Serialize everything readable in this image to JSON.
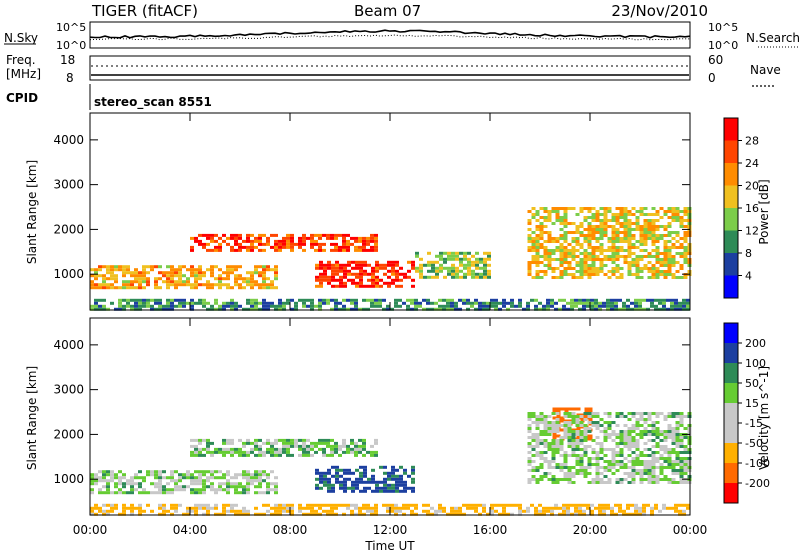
{
  "header": {
    "station": "TIGER (fitACF)",
    "beam": "Beam 07",
    "date": "23/Nov/2010"
  },
  "nsky_panel": {
    "left_label": "N.Sky",
    "left_ticks": [
      "10^5",
      "10^0"
    ],
    "right_label": "N.Search",
    "right_ticks": [
      "10^5",
      "10^0"
    ]
  },
  "freq_panel": {
    "left_label_1": "Freq.",
    "left_label_2": "[MHz]",
    "left_ticks": [
      "18",
      "8"
    ],
    "right_label": "Nave",
    "right_ticks": [
      "60",
      "0"
    ]
  },
  "cpid_panel": {
    "label": "CPID",
    "value": "stereo_scan 8551"
  },
  "colors": {
    "power_scale": [
      "#0000ff",
      "#1c3fa0",
      "#2e8b57",
      "#7ccd4a",
      "#f0c020",
      "#ff8c00",
      "#ff4500",
      "#ff0000"
    ],
    "velocity_scale": [
      "#ff0000",
      "#ff6a00",
      "#ffb000",
      "#c8c8c8",
      "#c8c8c8",
      "#66cc33",
      "#2e8b57",
      "#1c3fa0",
      "#0000ff"
    ]
  },
  "chart_data": [
    {
      "type": "heatmap",
      "name": "power",
      "ylabel": "Slant Range [km]",
      "ylim": [
        200,
        4600
      ],
      "y_ticks": [
        1000,
        2000,
        3000,
        4000
      ],
      "x_ticks": [
        "00:00",
        "04:00",
        "08:00",
        "12:00",
        "16:00",
        "20:00",
        "00:00"
      ],
      "colorbar": {
        "label": "Power [dB]",
        "ticks": [
          "4",
          "8",
          "12",
          "16",
          "20",
          "24",
          "28"
        ]
      },
      "bands": [
        {
          "from_hour": 0.0,
          "to_hour": 7.5,
          "range_start_km": 700,
          "range_end_km": 1200,
          "dB": 20
        },
        {
          "from_hour": 4.0,
          "to_hour": 11.5,
          "range_start_km": 1500,
          "range_end_km": 1900,
          "dB": 26
        },
        {
          "from_hour": 9.0,
          "to_hour": 13.0,
          "range_start_km": 700,
          "range_end_km": 1300,
          "dB": 28
        },
        {
          "from_hour": 13.0,
          "to_hour": 16.0,
          "range_start_km": 900,
          "range_end_km": 1500,
          "dB": 14
        },
        {
          "from_hour": 17.5,
          "to_hour": 24.0,
          "range_start_km": 900,
          "range_end_km": 2500,
          "dB": 18
        },
        {
          "from_hour": 0.0,
          "to_hour": 24.0,
          "range_start_km": 200,
          "range_end_km": 450,
          "dB": 10
        }
      ]
    },
    {
      "type": "heatmap",
      "name": "velocity",
      "ylabel": "Slant Range [km]",
      "xlabel": "Time UT",
      "ylim": [
        200,
        4600
      ],
      "y_ticks": [
        1000,
        2000,
        3000,
        4000
      ],
      "x_ticks": [
        "00:00",
        "04:00",
        "08:00",
        "12:00",
        "16:00",
        "20:00",
        "00:00"
      ],
      "colorbar": {
        "label": "Velocity [m s^-1]",
        "ticks": [
          "200",
          "100",
          "50",
          "15",
          "-15",
          "-50",
          "-100",
          "-200"
        ]
      },
      "bands": [
        {
          "from_hour": 0.0,
          "to_hour": 7.5,
          "range_start_km": 700,
          "range_end_km": 1200,
          "v": 0
        },
        {
          "from_hour": 4.0,
          "to_hour": 11.5,
          "range_start_km": 1500,
          "range_end_km": 1900,
          "v": 5
        },
        {
          "from_hour": 9.0,
          "to_hour": 13.0,
          "range_start_km": 700,
          "range_end_km": 1300,
          "v": 60
        },
        {
          "from_hour": 18.5,
          "to_hour": 20.0,
          "range_start_km": 1900,
          "range_end_km": 2600,
          "v": -180
        },
        {
          "from_hour": 17.5,
          "to_hour": 24.0,
          "range_start_km": 900,
          "range_end_km": 2500,
          "v": 0
        },
        {
          "from_hour": 0.0,
          "to_hour": 24.0,
          "range_start_km": 200,
          "range_end_km": 450,
          "v": -60
        }
      ]
    }
  ]
}
